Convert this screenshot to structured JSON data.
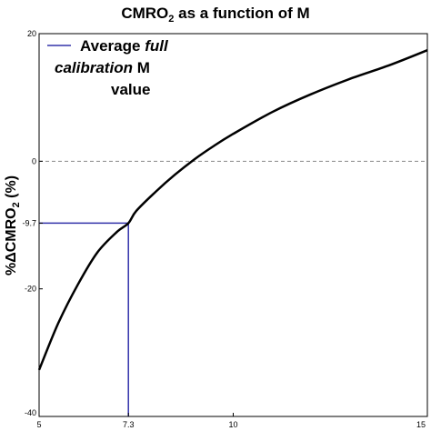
{
  "chart_data": {
    "type": "line",
    "title": {
      "main": "CMRO",
      "sub": "2",
      "rest": " as a function of M"
    },
    "ylabel": {
      "main": "%ΔCMRO",
      "sub": "2",
      "rest": " (%)"
    },
    "xlabel": "",
    "xlim": [
      5,
      15
    ],
    "ylim": [
      -40,
      20
    ],
    "x_ticks": [
      5,
      7.3,
      10,
      15
    ],
    "x_tick_labels": [
      "5",
      "7.3",
      "10",
      "15"
    ],
    "y_ticks": [
      20,
      0,
      -9.7,
      -20,
      -40
    ],
    "y_tick_labels": [
      "20",
      "0",
      "-9.7",
      "-20",
      "-40"
    ],
    "zero_line": {
      "y": 0,
      "style": "dashed",
      "color": "#888888"
    },
    "series": [
      {
        "color": "#000000",
        "x": [
          5,
          5.5,
          6,
          6.5,
          7,
          7.3,
          7.5,
          8,
          8.5,
          9,
          9.5,
          10,
          11,
          12,
          13,
          14,
          15
        ],
        "y": [
          -32.7,
          -25.3,
          -19.3,
          -14.3,
          -11.1,
          -9.7,
          -7.8,
          -4.8,
          -2.1,
          0.3,
          2.4,
          4.3,
          7.7,
          10.5,
          12.9,
          15.0,
          17.4
        ]
      }
    ],
    "reference_lines": {
      "color": "#3333aa",
      "x": 7.3,
      "y": -9.7
    },
    "legend": {
      "position": "top-left",
      "color": "#3333aa",
      "label_plain": "Average ",
      "label_italic_1": "full",
      "label_italic_2": "calibration",
      "label_plain_2": " M",
      "label_line3": "value"
    }
  }
}
